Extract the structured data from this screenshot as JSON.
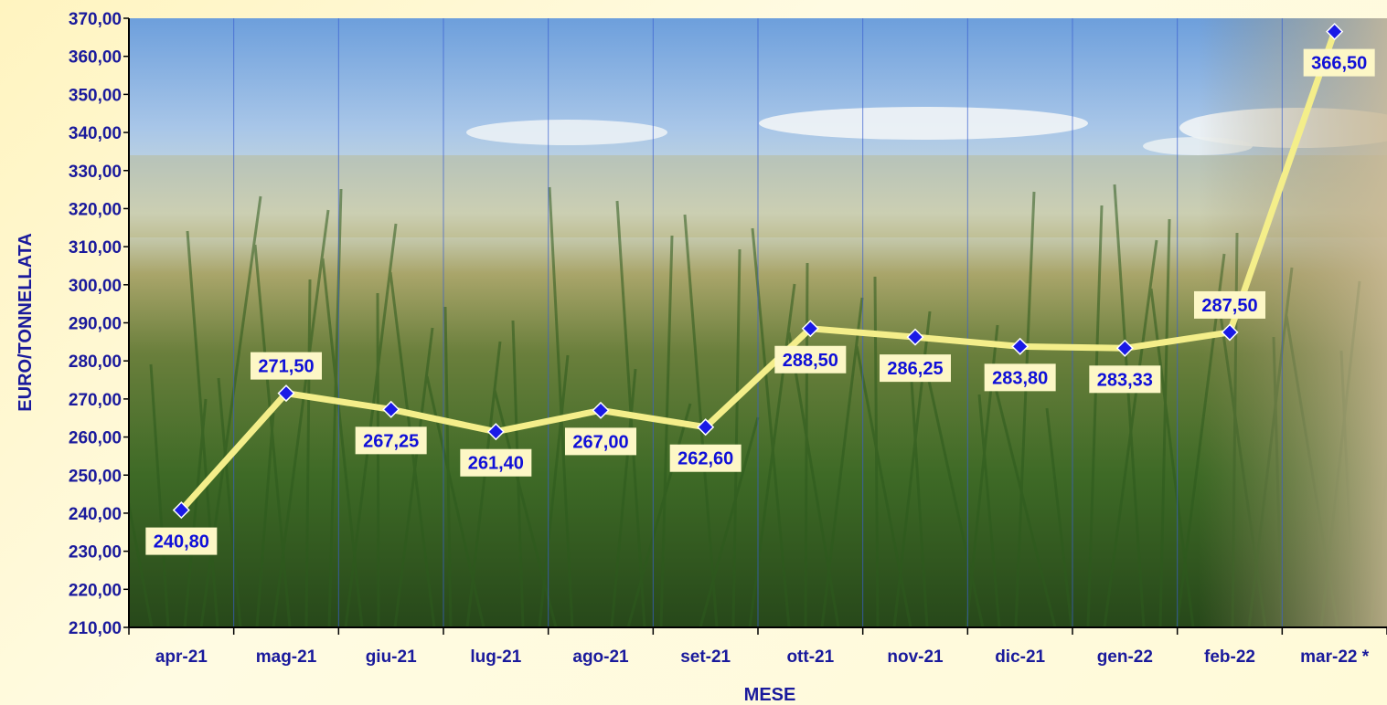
{
  "chart_data": {
    "type": "line",
    "title": "",
    "xlabel": "MESE",
    "ylabel": "EURO/TONNELLATA",
    "ylim": [
      210,
      370
    ],
    "yticks": [
      "210,00",
      "220,00",
      "230,00",
      "240,00",
      "250,00",
      "260,00",
      "270,00",
      "280,00",
      "290,00",
      "300,00",
      "310,00",
      "320,00",
      "330,00",
      "340,00",
      "350,00",
      "360,00",
      "370,00"
    ],
    "categories": [
      "apr-21",
      "mag-21",
      "giu-21",
      "lug-21",
      "ago-21",
      "set-21",
      "ott-21",
      "nov-21",
      "dic-21",
      "gen-22",
      "feb-22",
      "mar-22 *"
    ],
    "series": [
      {
        "values": [
          240.8,
          271.5,
          267.25,
          261.4,
          267.0,
          262.6,
          288.5,
          286.25,
          283.8,
          283.33,
          287.5,
          366.5
        ],
        "labels": [
          "240,80",
          "271,50",
          "267,25",
          "261,40",
          "267,00",
          "262,60",
          "288,50",
          "286,25",
          "283,80",
          "283,33",
          "287,50",
          "366,50"
        ]
      }
    ],
    "grid": true,
    "legend": "none",
    "colors": {
      "line": "#f4ee8a",
      "marker": "#1a1ae6",
      "label_bg": "#fdf7c6",
      "text": "#1a1a9c",
      "sky_top": "#6d9fdc",
      "sky_bottom": "#c9dcec",
      "foliage": "#3e6a26"
    }
  }
}
